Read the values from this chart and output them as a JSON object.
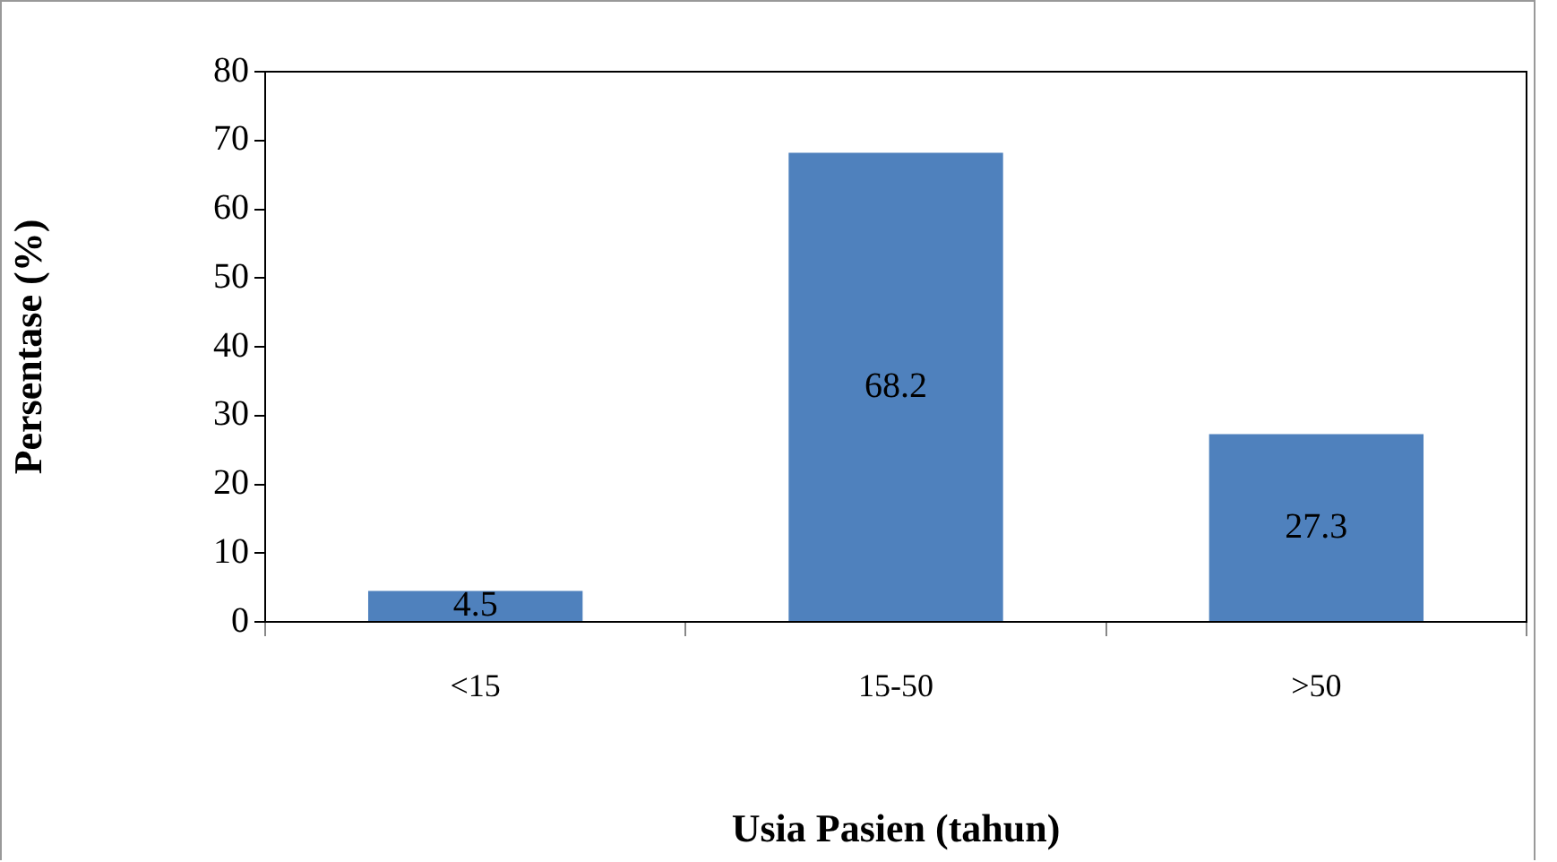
{
  "chart_data": {
    "type": "bar",
    "xlabel": "Usia Pasien (tahun)",
    "ylabel": "Persentase (%)",
    "categories": [
      "<15",
      "15-50",
      ">50"
    ],
    "values": [
      4.5,
      68.2,
      27.3
    ],
    "color": "#4f81bd",
    "ylim": [
      0,
      80
    ],
    "yticks": [
      0,
      10,
      20,
      30,
      40,
      50,
      60,
      70,
      80
    ],
    "data_labels": true
  }
}
